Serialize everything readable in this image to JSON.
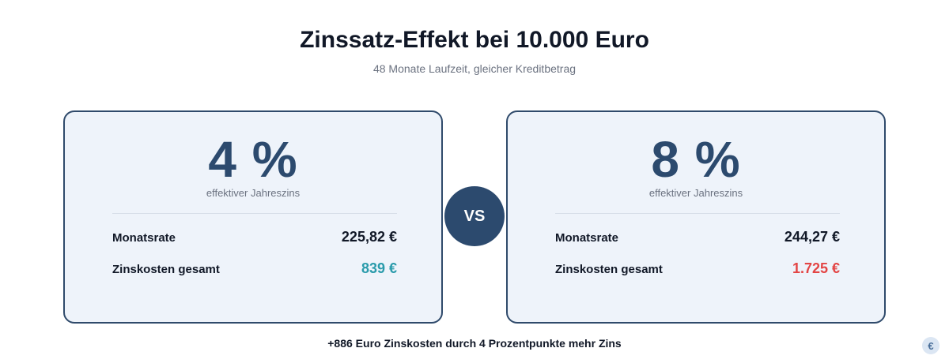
{
  "header": {
    "title": "Zinssatz-Effekt bei 10.000 Euro",
    "subtitle": "48 Monate Laufzeit, gleicher Kreditbetrag"
  },
  "comparison": {
    "left": {
      "rate": "4 %",
      "rate_label": "effektiver Jahreszins",
      "rows": [
        {
          "label": "Monatsrate",
          "value": "225,82 €"
        },
        {
          "label": "Zinskosten gesamt",
          "value": "839 €"
        }
      ],
      "highlight_color": "#2a9bab"
    },
    "right": {
      "rate": "8 %",
      "rate_label": "effektiver Jahreszins",
      "rows": [
        {
          "label": "Monatsrate",
          "value": "244,27 €"
        },
        {
          "label": "Zinskosten gesamt",
          "value": "1.725 €"
        }
      ],
      "highlight_color": "#e34444"
    },
    "vs_label": "VS"
  },
  "footnote": "+886 Euro Zinskosten durch 4 Prozentpunkte mehr Zins",
  "badge": {
    "icon": "euro-icon",
    "glyph": "€"
  },
  "colors": {
    "accent": "#2c4a6e",
    "card_bg": "#eef3fa",
    "good": "#2a9bab",
    "bad": "#e34444"
  }
}
